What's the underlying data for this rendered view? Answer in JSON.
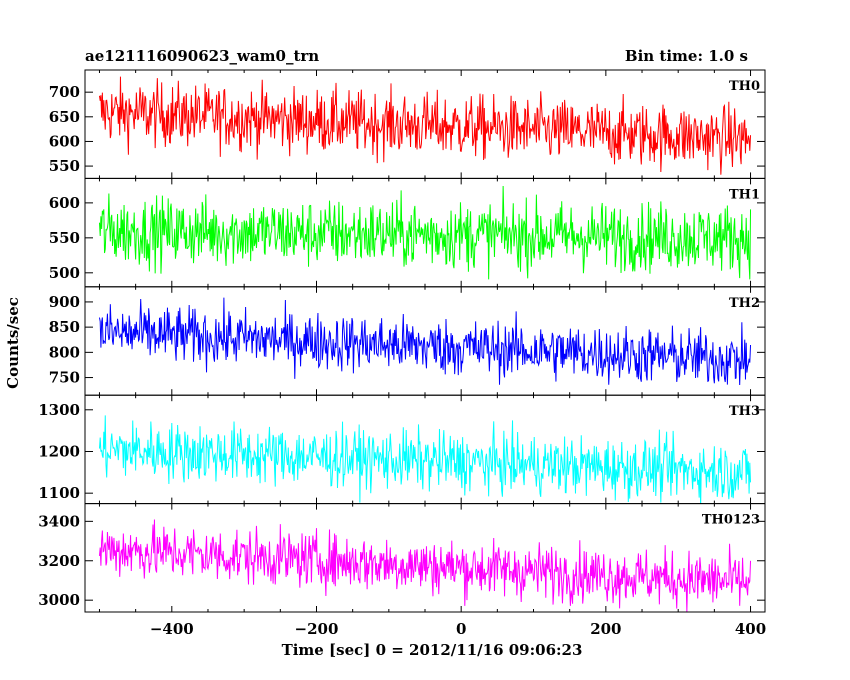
{
  "chart_data": {
    "type": "line",
    "title_left": "ae121116090623_wam0_trn",
    "title_right": "Bin time: 1.0 s",
    "xlabel": "Time [sec] 0 = 2012/11/16 09:06:23",
    "ylabel": "Counts/sec",
    "xlim": [
      -520,
      420
    ],
    "x_range": [
      -500,
      400
    ],
    "x_ticks": [
      -400,
      -200,
      0,
      200,
      400
    ],
    "x_tick_labels": [
      "−400",
      "−200",
      "0",
      "200",
      "400"
    ],
    "panels": [
      {
        "name": "TH0",
        "color": "#ff0000",
        "ylim": [
          525,
          745
        ],
        "yticks": [
          550,
          600,
          650,
          700
        ],
        "ytick_labels": [
          "550",
          "600",
          "650",
          "700"
        ],
        "level_start": 660,
        "level_end": 605,
        "noise": 32
      },
      {
        "name": "TH1",
        "color": "#00ff00",
        "ylim": [
          480,
          635
        ],
        "yticks": [
          500,
          550,
          600
        ],
        "ytick_labels": [
          "500",
          "550",
          "600"
        ],
        "level_start": 560,
        "level_end": 550,
        "noise": 24
      },
      {
        "name": "TH2",
        "color": "#0000ff",
        "ylim": [
          715,
          930
        ],
        "yticks": [
          750,
          800,
          850,
          900
        ],
        "ytick_labels": [
          "750",
          "800",
          "850",
          "900"
        ],
        "level_start": 840,
        "level_end": 785,
        "noise": 28
      },
      {
        "name": "TH3",
        "color": "#00ffff",
        "ylim": [
          1075,
          1335
        ],
        "yticks": [
          1100,
          1200,
          1300
        ],
        "ytick_labels": [
          "1100",
          "1200",
          "1300"
        ],
        "level_start": 1205,
        "level_end": 1150,
        "noise": 35
      },
      {
        "name": "TH0123",
        "color": "#ff00ff",
        "ylim": [
          2940,
          3490
        ],
        "yticks": [
          3000,
          3200,
          3400
        ],
        "ytick_labels": [
          "3000",
          "3200",
          "3400"
        ],
        "level_start": 3260,
        "level_end": 3090,
        "noise": 70
      }
    ],
    "grid": false,
    "legend": "none"
  }
}
